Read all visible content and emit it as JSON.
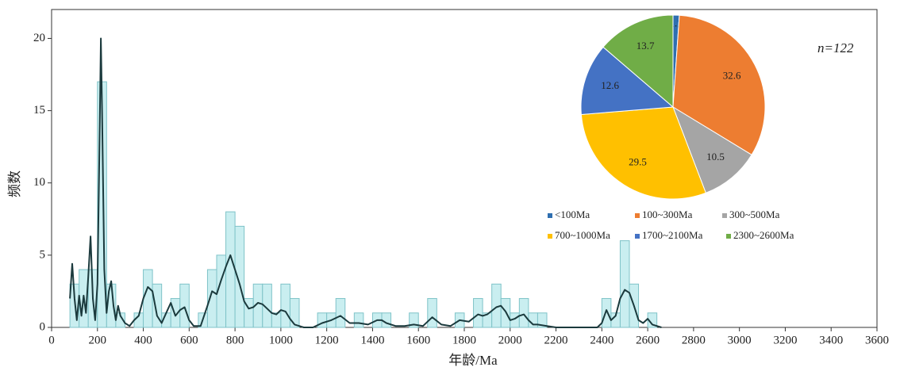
{
  "chart_data": [
    {
      "type": "histogram",
      "xlabel": "年龄/Ma",
      "ylabel": "频数",
      "bins": [
        80,
        120,
        160,
        200,
        240,
        280,
        320,
        360,
        400,
        440,
        480,
        520,
        560,
        600,
        640,
        680,
        720,
        760,
        800,
        840,
        880,
        920,
        960,
        1000,
        1040,
        1080,
        1120,
        1160,
        1200,
        1240,
        1280,
        1320,
        1360,
        1400,
        1440,
        1480,
        1520,
        1560,
        1600,
        1640,
        1680,
        1720,
        1760,
        1800,
        1840,
        1880,
        1920,
        1960,
        2000,
        2040,
        2080,
        2120,
        2160,
        2200,
        2240,
        2280,
        2320,
        2360,
        2400,
        2440,
        2480,
        2520,
        2560,
        2600,
        2640
      ],
      "values": [
        3,
        4,
        4,
        17,
        3,
        1,
        0,
        1,
        4,
        3,
        1,
        2,
        3,
        0,
        1,
        4,
        5,
        8,
        7,
        2,
        3,
        3,
        1,
        3,
        2,
        0,
        0,
        1,
        1,
        2,
        0,
        1,
        0,
        1,
        1,
        0,
        0,
        1,
        0,
        2,
        0,
        0,
        1,
        0,
        2,
        1,
        3,
        2,
        1,
        2,
        1,
        1,
        0,
        0,
        0,
        0,
        0,
        0,
        2,
        1,
        6,
        3,
        0,
        1
      ],
      "color": "#c9eef0",
      "edge_color": "#7fc3c8",
      "line": {
        "color": "#1b3a3d",
        "x": [
          80,
          90,
          100,
          110,
          120,
          130,
          140,
          150,
          160,
          170,
          180,
          190,
          200,
          210,
          215,
          220,
          230,
          240,
          250,
          260,
          270,
          280,
          290,
          300,
          320,
          340,
          360,
          380,
          400,
          420,
          440,
          460,
          480,
          500,
          520,
          540,
          560,
          580,
          600,
          620,
          650,
          680,
          700,
          720,
          740,
          760,
          780,
          800,
          820,
          840,
          860,
          880,
          900,
          920,
          940,
          960,
          980,
          1000,
          1020,
          1040,
          1060,
          1080,
          1100,
          1140,
          1180,
          1220,
          1260,
          1300,
          1340,
          1380,
          1420,
          1440,
          1460,
          1500,
          1540,
          1580,
          1620,
          1660,
          1700,
          1740,
          1780,
          1820,
          1860,
          1880,
          1900,
          1940,
          1960,
          1980,
          2000,
          2020,
          2040,
          2060,
          2080,
          2100,
          2120,
          2160,
          2200,
          2300,
          2380,
          2400,
          2420,
          2440,
          2460,
          2480,
          2500,
          2520,
          2540,
          2560,
          2580,
          2600,
          2620,
          2660
        ],
        "values": [
          2,
          4.4,
          2,
          0.5,
          2.2,
          0.8,
          2.2,
          1,
          3.5,
          6.3,
          2,
          0.5,
          3,
          14,
          20,
          15,
          4,
          1,
          2.5,
          3.2,
          1.5,
          0.5,
          1.5,
          0.8,
          0.3,
          0.1,
          0.5,
          0.8,
          2,
          2.8,
          2.5,
          0.8,
          0.3,
          1,
          1.7,
          0.8,
          1.2,
          1.4,
          0.5,
          0.1,
          0.1,
          1.5,
          2.5,
          2.3,
          3.3,
          4.2,
          5,
          4,
          3,
          1.8,
          1.3,
          1.4,
          1.7,
          1.6,
          1.3,
          1,
          0.9,
          1.2,
          1.1,
          0.6,
          0.2,
          0.1,
          0,
          0,
          0.3,
          0.5,
          0.8,
          0.3,
          0.3,
          0.2,
          0.5,
          0.5,
          0.3,
          0.1,
          0.1,
          0.2,
          0.1,
          0.7,
          0.2,
          0.1,
          0.5,
          0.4,
          0.9,
          0.8,
          0.9,
          1.4,
          1.5,
          1.1,
          0.5,
          0.6,
          0.8,
          0.9,
          0.5,
          0.2,
          0.2,
          0.1,
          0,
          0,
          0,
          0.3,
          1.2,
          0.5,
          0.8,
          2,
          2.6,
          2.4,
          1.5,
          0.5,
          0.3,
          0.6,
          0.2,
          0
        ]
      },
      "xlim": [
        0,
        3600
      ],
      "xticks": [
        0,
        200,
        400,
        600,
        800,
        1000,
        1200,
        1400,
        1600,
        1800,
        2000,
        2200,
        2400,
        2600,
        2800,
        3000,
        3200,
        3400,
        3600
      ],
      "ylim": [
        0,
        22
      ],
      "yticks": [
        0,
        5,
        10,
        15,
        20
      ],
      "annotation": "n=122"
    },
    {
      "type": "pie",
      "categories": [
        "<100Ma",
        "100~300Ma",
        "300~500Ma",
        "700~1000Ma",
        "1700~2100Ma",
        "2300~2600Ma"
      ],
      "values": [
        1.1,
        32.6,
        10.5,
        29.5,
        12.6,
        13.7
      ],
      "colors": [
        "#2f6fb0",
        "#ed7d31",
        "#a5a5a5",
        "#ffc000",
        "#4472c4",
        "#70ad47"
      ]
    }
  ]
}
